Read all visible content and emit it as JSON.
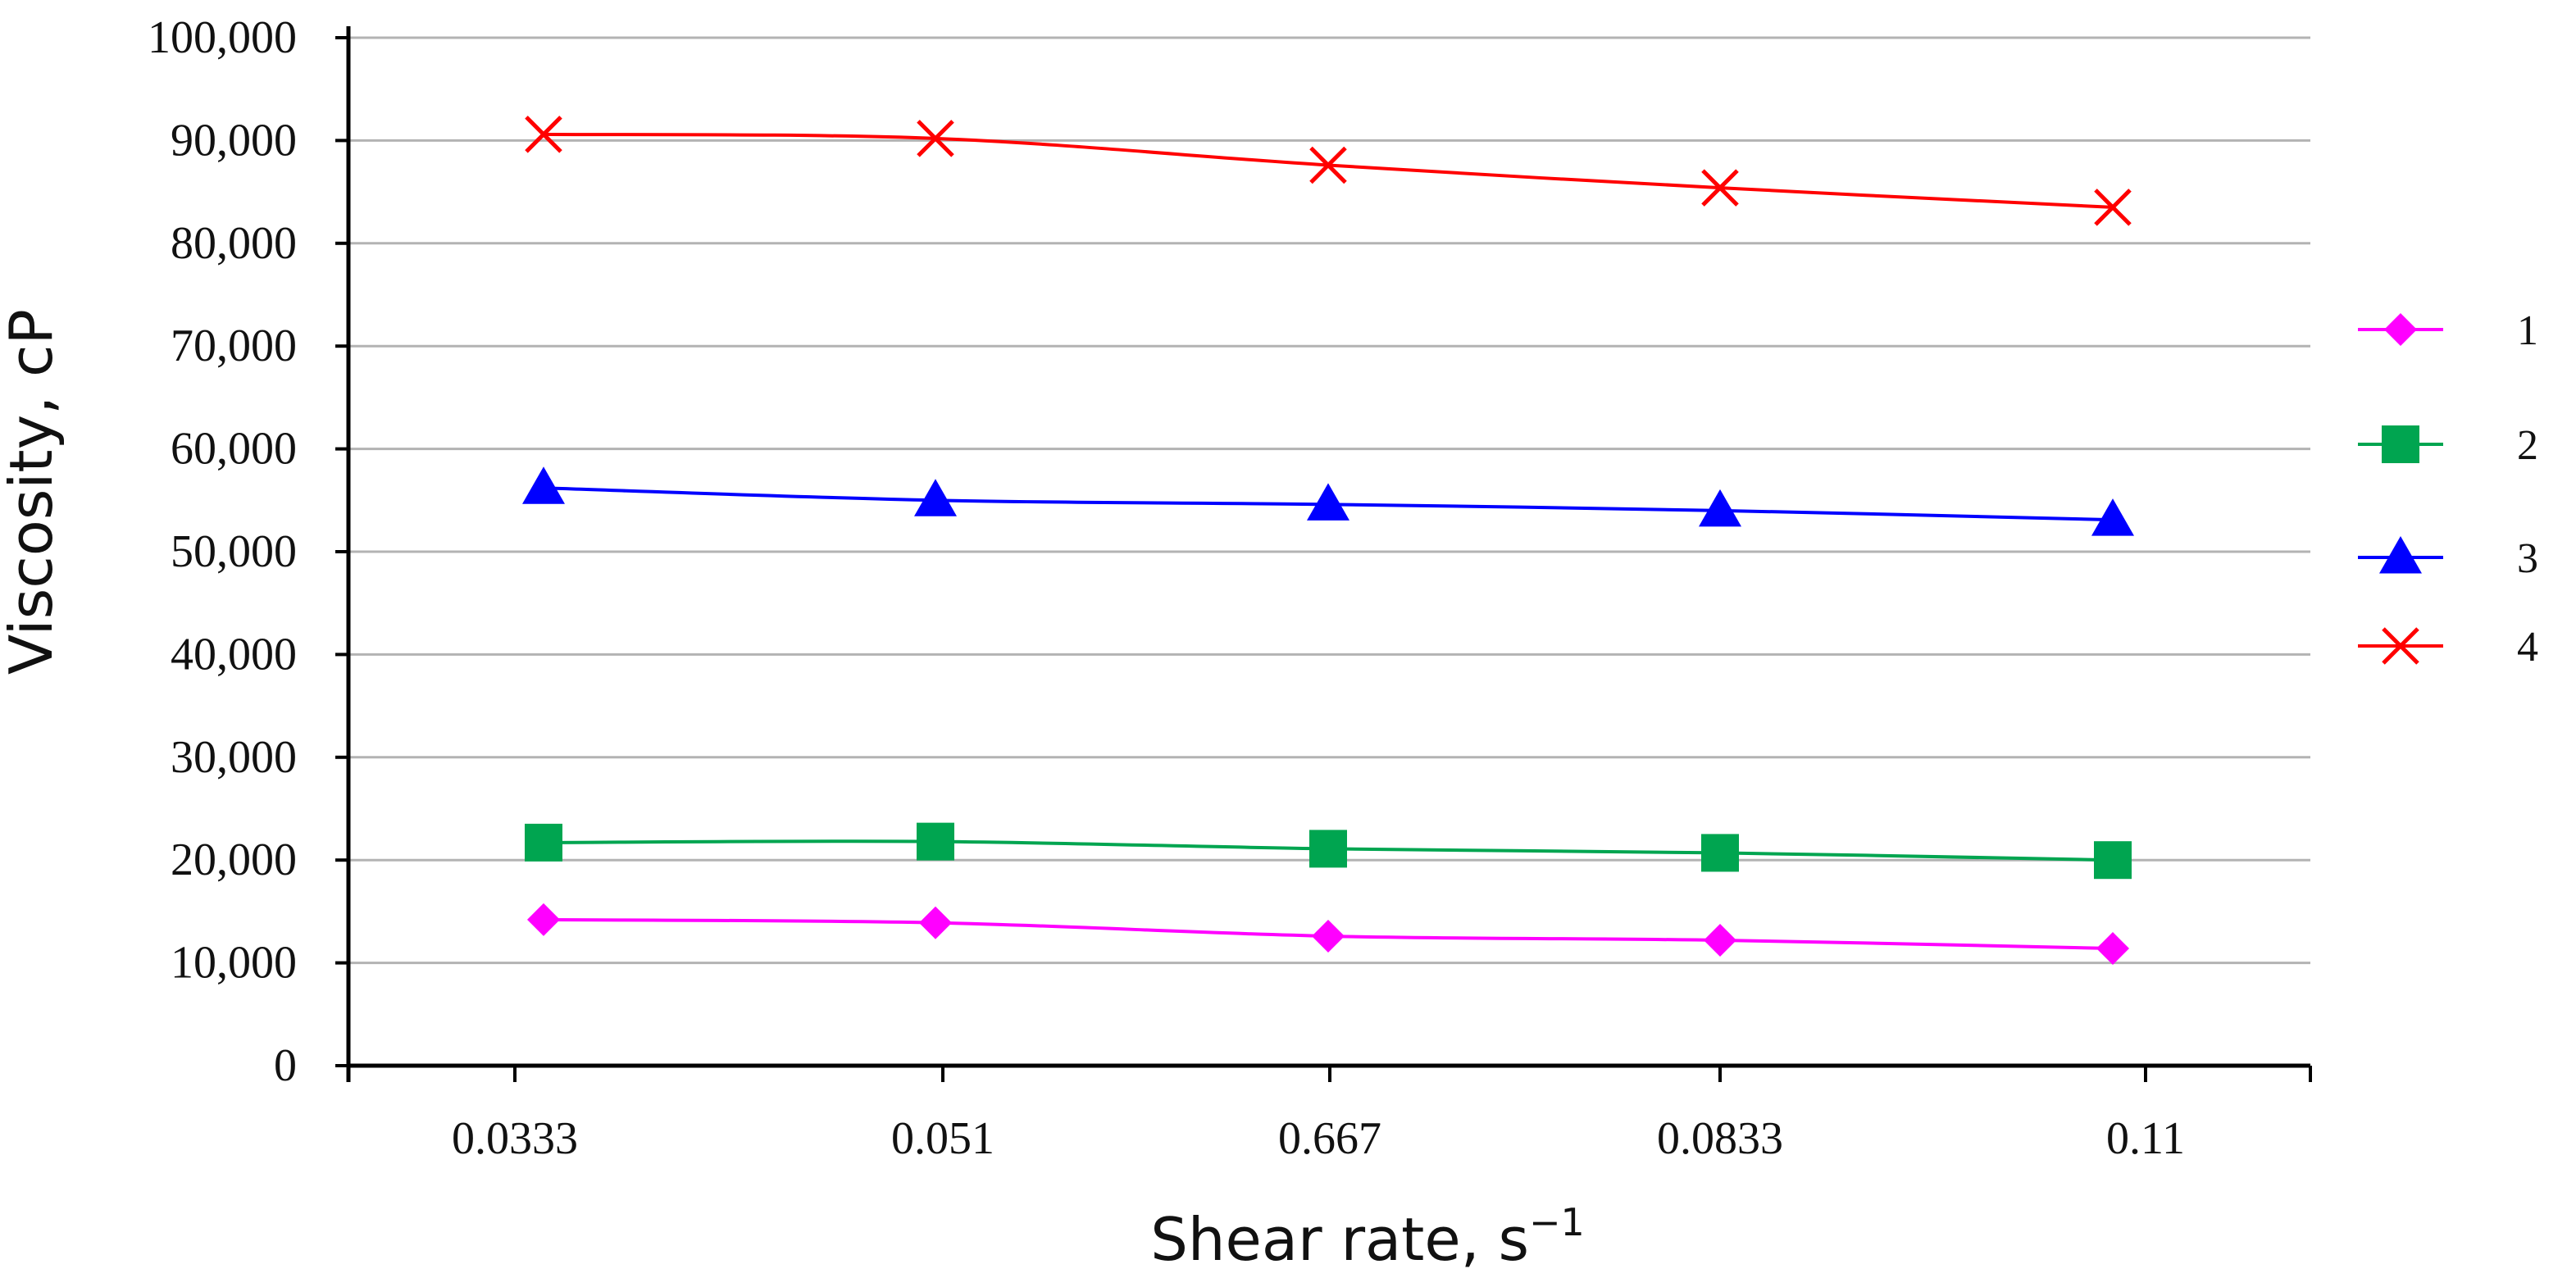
{
  "chart_data": {
    "type": "line",
    "title": "",
    "xlabel": "Shear rate, s",
    "xlabel_exponent": "−1",
    "ylabel": "Viscosity, cP",
    "ylim": [
      0,
      100000
    ],
    "yticks": [
      0,
      10000,
      20000,
      30000,
      40000,
      50000,
      60000,
      70000,
      80000,
      90000,
      100000
    ],
    "ytick_labels": [
      "0",
      "10,000",
      "20,000",
      "30,000",
      "40,000",
      "50,000",
      "60,000",
      "70,000",
      "80,000",
      "90,000",
      "100,000"
    ],
    "grid": true,
    "legend_position": "right",
    "categories": [
      "0.0333",
      "0.051",
      "0.667",
      "0.0833",
      "0.11"
    ],
    "series": [
      {
        "name": "1",
        "color": "#ff00ff",
        "marker": "diamond",
        "values": [
          14200,
          13900,
          12600,
          12200,
          11400
        ]
      },
      {
        "name": "2",
        "color": "#00a550",
        "marker": "square",
        "values": [
          21700,
          21800,
          21100,
          20700,
          20000
        ]
      },
      {
        "name": "3",
        "color": "#0000ff",
        "marker": "triangle",
        "values": [
          56200,
          55000,
          54600,
          54000,
          53100
        ]
      },
      {
        "name": "4",
        "color": "#ff0000",
        "marker": "x",
        "values": [
          90600,
          90200,
          87600,
          85400,
          83500
        ]
      }
    ]
  }
}
